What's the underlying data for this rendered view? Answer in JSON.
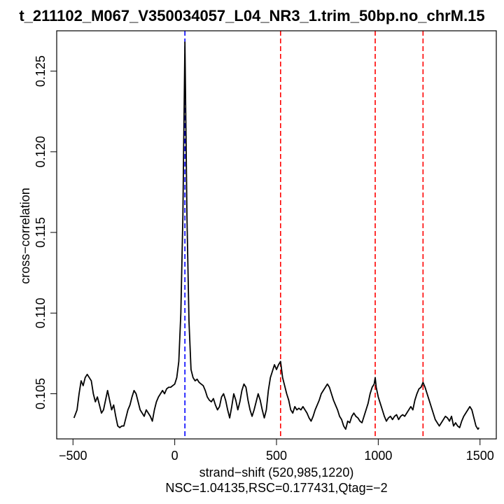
{
  "chart_data": {
    "type": "line",
    "title": "t_211102_M067_V350034057_L04_NR3_1.trim_50bp.no_chrM.15",
    "xlabel": "strand−shift (520,985,1220)",
    "ylabel": "cross−correlation",
    "subtitle": "NSC=1.04135,RSC=0.177431,Qtag=−2",
    "xlim": [
      -500,
      1500
    ],
    "ylim": [
      0.1022,
      0.1275
    ],
    "x_ticks": [
      -500,
      0,
      500,
      1000,
      1500
    ],
    "x_tick_labels": [
      "−500",
      "0",
      "500",
      "1000",
      "1500"
    ],
    "y_ticks": [
      0.105,
      0.11,
      0.115,
      0.12,
      0.125
    ],
    "y_tick_labels": [
      "0.105",
      "0.110",
      "0.115",
      "0.120",
      "0.125"
    ],
    "grid": false,
    "series": [
      {
        "color": "#000000",
        "points": [
          [
            -495,
            0.1035
          ],
          [
            -480,
            0.104
          ],
          [
            -470,
            0.105
          ],
          [
            -460,
            0.1058
          ],
          [
            -450,
            0.1055
          ],
          [
            -440,
            0.106
          ],
          [
            -430,
            0.1062
          ],
          [
            -420,
            0.106
          ],
          [
            -410,
            0.1058
          ],
          [
            -400,
            0.105
          ],
          [
            -390,
            0.1045
          ],
          [
            -380,
            0.1048
          ],
          [
            -370,
            0.1043
          ],
          [
            -360,
            0.1038
          ],
          [
            -350,
            0.104
          ],
          [
            -340,
            0.1046
          ],
          [
            -330,
            0.1052
          ],
          [
            -320,
            0.1046
          ],
          [
            -310,
            0.104
          ],
          [
            -300,
            0.1043
          ],
          [
            -290,
            0.1036
          ],
          [
            -280,
            0.103
          ],
          [
            -270,
            0.1029
          ],
          [
            -260,
            0.103
          ],
          [
            -250,
            0.103
          ],
          [
            -240,
            0.1035
          ],
          [
            -230,
            0.104
          ],
          [
            -220,
            0.1043
          ],
          [
            -210,
            0.1048
          ],
          [
            -200,
            0.1052
          ],
          [
            -190,
            0.105
          ],
          [
            -180,
            0.1045
          ],
          [
            -170,
            0.104
          ],
          [
            -160,
            0.1038
          ],
          [
            -150,
            0.1036
          ],
          [
            -140,
            0.104
          ],
          [
            -130,
            0.1038
          ],
          [
            -120,
            0.1036
          ],
          [
            -110,
            0.1033
          ],
          [
            -100,
            0.104
          ],
          [
            -90,
            0.1045
          ],
          [
            -80,
            0.1048
          ],
          [
            -70,
            0.105
          ],
          [
            -60,
            0.1052
          ],
          [
            -50,
            0.105
          ],
          [
            -40,
            0.1053
          ],
          [
            -30,
            0.1054
          ],
          [
            -20,
            0.1054
          ],
          [
            -10,
            0.1055
          ],
          [
            0,
            0.1056
          ],
          [
            10,
            0.106
          ],
          [
            20,
            0.107
          ],
          [
            30,
            0.11
          ],
          [
            40,
            0.116
          ],
          [
            50,
            0.1268
          ],
          [
            60,
            0.116
          ],
          [
            70,
            0.1095
          ],
          [
            80,
            0.1065
          ],
          [
            90,
            0.106
          ],
          [
            100,
            0.1058
          ],
          [
            110,
            0.1059
          ],
          [
            120,
            0.1057
          ],
          [
            130,
            0.1056
          ],
          [
            140,
            0.1055
          ],
          [
            150,
            0.1052
          ],
          [
            160,
            0.1048
          ],
          [
            170,
            0.1046
          ],
          [
            180,
            0.1045
          ],
          [
            190,
            0.1047
          ],
          [
            200,
            0.1043
          ],
          [
            210,
            0.104
          ],
          [
            220,
            0.1042
          ],
          [
            230,
            0.1048
          ],
          [
            240,
            0.105
          ],
          [
            250,
            0.1046
          ],
          [
            260,
            0.104
          ],
          [
            270,
            0.1035
          ],
          [
            280,
            0.1042
          ],
          [
            290,
            0.105
          ],
          [
            300,
            0.1046
          ],
          [
            310,
            0.104
          ],
          [
            320,
            0.1045
          ],
          [
            330,
            0.1052
          ],
          [
            340,
            0.1056
          ],
          [
            350,
            0.1054
          ],
          [
            360,
            0.1046
          ],
          [
            370,
            0.104
          ],
          [
            380,
            0.1036
          ],
          [
            390,
            0.104
          ],
          [
            400,
            0.1045
          ],
          [
            410,
            0.105
          ],
          [
            420,
            0.1046
          ],
          [
            430,
            0.104
          ],
          [
            440,
            0.1035
          ],
          [
            450,
            0.104
          ],
          [
            460,
            0.1052
          ],
          [
            470,
            0.106
          ],
          [
            480,
            0.1064
          ],
          [
            490,
            0.1068
          ],
          [
            500,
            0.1065
          ],
          [
            510,
            0.1068
          ],
          [
            520,
            0.107
          ],
          [
            530,
            0.106
          ],
          [
            540,
            0.1055
          ],
          [
            550,
            0.105
          ],
          [
            560,
            0.1046
          ],
          [
            570,
            0.104
          ],
          [
            580,
            0.1038
          ],
          [
            590,
            0.1042
          ],
          [
            600,
            0.104
          ],
          [
            610,
            0.1041
          ],
          [
            620,
            0.104
          ],
          [
            630,
            0.1042
          ],
          [
            640,
            0.104
          ],
          [
            650,
            0.1038
          ],
          [
            660,
            0.1035
          ],
          [
            670,
            0.1033
          ],
          [
            680,
            0.1036
          ],
          [
            690,
            0.104
          ],
          [
            700,
            0.1043
          ],
          [
            710,
            0.1046
          ],
          [
            720,
            0.105
          ],
          [
            730,
            0.1052
          ],
          [
            740,
            0.1054
          ],
          [
            750,
            0.1056
          ],
          [
            760,
            0.1054
          ],
          [
            770,
            0.105
          ],
          [
            780,
            0.1046
          ],
          [
            790,
            0.1043
          ],
          [
            800,
            0.104
          ],
          [
            810,
            0.1036
          ],
          [
            820,
            0.1034
          ],
          [
            830,
            0.103
          ],
          [
            840,
            0.1028
          ],
          [
            850,
            0.1033
          ],
          [
            860,
            0.1032
          ],
          [
            870,
            0.1036
          ],
          [
            880,
            0.1038
          ],
          [
            890,
            0.1036
          ],
          [
            900,
            0.1035
          ],
          [
            910,
            0.1033
          ],
          [
            920,
            0.1032
          ],
          [
            930,
            0.1036
          ],
          [
            940,
            0.104
          ],
          [
            950,
            0.1044
          ],
          [
            960,
            0.105
          ],
          [
            970,
            0.1054
          ],
          [
            980,
            0.1056
          ],
          [
            985,
            0.106
          ],
          [
            990,
            0.1054
          ],
          [
            1000,
            0.1048
          ],
          [
            1010,
            0.1044
          ],
          [
            1020,
            0.104
          ],
          [
            1030,
            0.1036
          ],
          [
            1040,
            0.1033
          ],
          [
            1050,
            0.1035
          ],
          [
            1060,
            0.1036
          ],
          [
            1070,
            0.1034
          ],
          [
            1080,
            0.1036
          ],
          [
            1090,
            0.1037
          ],
          [
            1100,
            0.1034
          ],
          [
            1110,
            0.1036
          ],
          [
            1120,
            0.1037
          ],
          [
            1130,
            0.1036
          ],
          [
            1140,
            0.1038
          ],
          [
            1150,
            0.104
          ],
          [
            1160,
            0.1042
          ],
          [
            1170,
            0.104
          ],
          [
            1180,
            0.1046
          ],
          [
            1190,
            0.105
          ],
          [
            1200,
            0.1053
          ],
          [
            1210,
            0.1054
          ],
          [
            1220,
            0.1057
          ],
          [
            1230,
            0.1054
          ],
          [
            1240,
            0.105
          ],
          [
            1250,
            0.1046
          ],
          [
            1260,
            0.1042
          ],
          [
            1270,
            0.1038
          ],
          [
            1280,
            0.1034
          ],
          [
            1290,
            0.1032
          ],
          [
            1300,
            0.103
          ],
          [
            1310,
            0.1032
          ],
          [
            1320,
            0.1034
          ],
          [
            1330,
            0.1036
          ],
          [
            1340,
            0.1035
          ],
          [
            1350,
            0.1033
          ],
          [
            1360,
            0.1036
          ],
          [
            1370,
            0.103
          ],
          [
            1380,
            0.1032
          ],
          [
            1390,
            0.103
          ],
          [
            1400,
            0.1029
          ],
          [
            1410,
            0.1033
          ],
          [
            1420,
            0.1036
          ],
          [
            1430,
            0.1038
          ],
          [
            1440,
            0.104
          ],
          [
            1450,
            0.1042
          ],
          [
            1460,
            0.104
          ],
          [
            1470,
            0.1035
          ],
          [
            1480,
            0.103
          ],
          [
            1490,
            0.1028
          ],
          [
            1495,
            0.1029
          ]
        ]
      }
    ],
    "vlines": [
      {
        "x": 50,
        "color": "#0000ff",
        "style": "dashed"
      },
      {
        "x": 520,
        "color": "#ff0000",
        "style": "dashed"
      },
      {
        "x": 985,
        "color": "#ff0000",
        "style": "dashed"
      },
      {
        "x": 1220,
        "color": "#ff0000",
        "style": "dashed"
      }
    ]
  }
}
